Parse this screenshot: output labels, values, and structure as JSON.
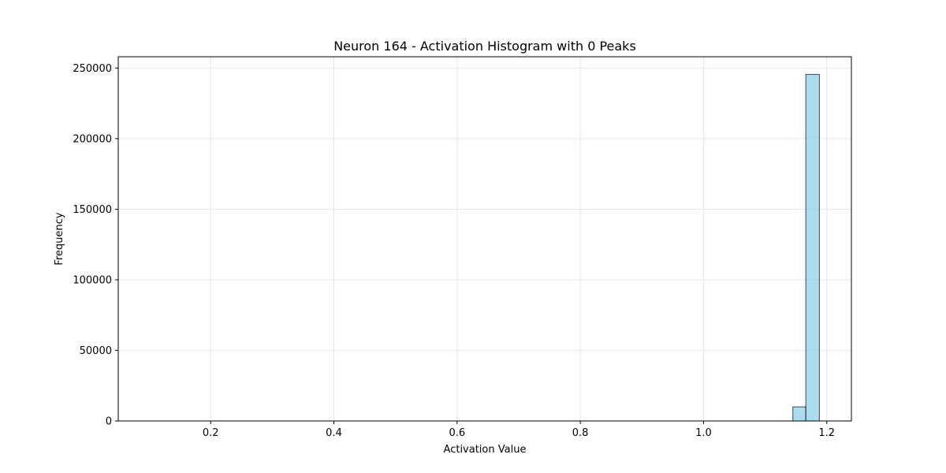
{
  "chart_data": {
    "type": "bar",
    "title": "Neuron 164 - Activation Histogram with 0 Peaks",
    "xlabel": "Activation Value",
    "ylabel": "Frequency",
    "xlim": [
      0.05,
      1.24
    ],
    "ylim": [
      0,
      258000
    ],
    "xticks": [
      0.2,
      0.4,
      0.6,
      0.8,
      1.0,
      1.2
    ],
    "xtick_labels": [
      "0.2",
      "0.4",
      "0.6",
      "0.8",
      "1.0",
      "1.2"
    ],
    "yticks": [
      0,
      50000,
      100000,
      150000,
      200000,
      250000
    ],
    "ytick_labels": [
      "0",
      "50000",
      "100000",
      "150000",
      "200000",
      "250000"
    ],
    "grid": true,
    "bins": [
      {
        "x0": 1.145,
        "x1": 1.166,
        "value": 10000
      },
      {
        "x0": 1.166,
        "x1": 1.188,
        "value": 245500
      }
    ],
    "colors": {
      "bar_fill": "#87ceeb",
      "bar_edge": "#000000",
      "grid": "#e6e6e6",
      "axis": "#000000"
    }
  }
}
